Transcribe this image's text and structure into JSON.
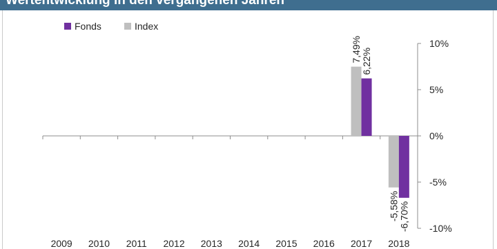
{
  "header": {
    "title": "Wertentwicklung in den vergangenen Jahren"
  },
  "colors": {
    "header_bg": "#3f6e8f",
    "fonds": "#7030a0",
    "index": "#bfbfbf",
    "axis": "#8c8c8c",
    "text": "#262626"
  },
  "chart_data": {
    "type": "bar",
    "categories": [
      "2009",
      "2010",
      "2011",
      "2012",
      "2013",
      "2014",
      "2015",
      "2016",
      "2017",
      "2018"
    ],
    "series": [
      {
        "name": "Index",
        "color": "#bfbfbf",
        "values": [
          null,
          null,
          null,
          null,
          null,
          null,
          null,
          null,
          7.49,
          -5.58
        ],
        "labels": [
          "",
          "",
          "",
          "",
          "",
          "",
          "",
          "",
          "7,49%",
          "-5,58%"
        ]
      },
      {
        "name": "Fonds",
        "color": "#7030a0",
        "values": [
          null,
          null,
          null,
          null,
          null,
          null,
          null,
          null,
          6.22,
          -6.7
        ],
        "labels": [
          "",
          "",
          "",
          "",
          "",
          "",
          "",
          "",
          "6,22%",
          "-6,70%"
        ]
      }
    ],
    "legend_order": [
      "Fonds",
      "Index"
    ],
    "legend_position": "top-left",
    "ylim": [
      -10,
      10
    ],
    "yticks": [
      10,
      5,
      0,
      -5,
      -10
    ],
    "ytick_labels": [
      "10%",
      "5%",
      "0%",
      "-5%",
      "-10%"
    ],
    "y_axis_side": "right",
    "grid": false
  }
}
